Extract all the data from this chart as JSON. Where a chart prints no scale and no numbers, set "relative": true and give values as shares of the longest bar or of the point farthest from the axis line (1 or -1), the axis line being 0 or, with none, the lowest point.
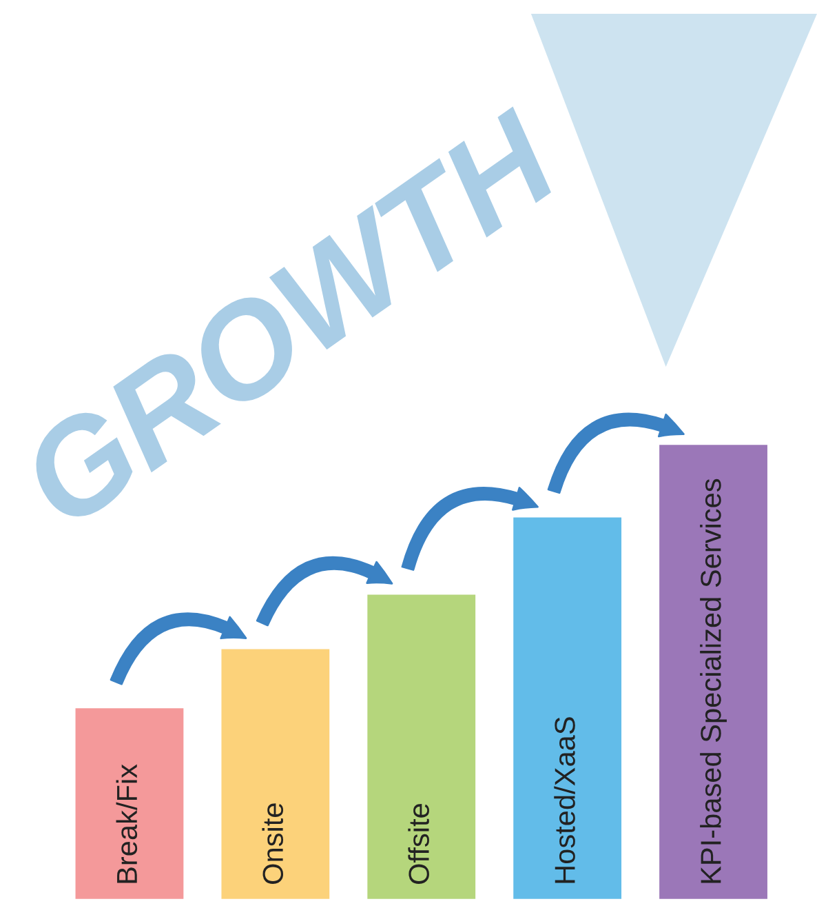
{
  "chart_data": {
    "type": "bar",
    "relative": true,
    "categories": [
      "Break/Fix",
      "Onsite",
      "Offsite",
      "Hosted/XaaS",
      "KPI-based Specialized Services"
    ],
    "values": [
      0.42,
      0.55,
      0.67,
      0.84,
      1
    ],
    "colors": [
      "#f4999a",
      "#fcd27a",
      "#b5d67c",
      "#62bce9",
      "#9b77b8"
    ],
    "annotations": [
      "GROWTH"
    ]
  }
}
